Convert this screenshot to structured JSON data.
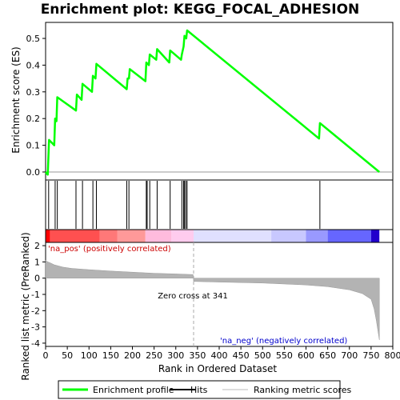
{
  "chart_data": {
    "type": "line",
    "title": "Enrichment plot: KEGG_FOCAL_ADHESION",
    "xlabel": "Rank in Ordered Dataset",
    "ylabel_top": "Enrichment score (ES)",
    "ylabel_bottom": "Ranked list metric (PreRanked)",
    "x_ticks": [
      0,
      50,
      100,
      150,
      200,
      250,
      300,
      350,
      400,
      450,
      500,
      550,
      600,
      650,
      700,
      750,
      800
    ],
    "x_range": [
      0,
      800
    ],
    "es_ticks": [
      0.0,
      0.1,
      0.2,
      0.3,
      0.4,
      0.5
    ],
    "es_range": [
      -0.03,
      0.56
    ],
    "metric_ticks": [
      2,
      1,
      0,
      -1,
      -2,
      -3,
      -4
    ],
    "metric_range": [
      -4.2,
      2.2
    ],
    "series_es": {
      "name": "Enrichment profile",
      "color": "#00ff00",
      "x": [
        0,
        5,
        8,
        20,
        22,
        25,
        27,
        70,
        72,
        83,
        85,
        107,
        109,
        115,
        117,
        187,
        189,
        192,
        194,
        230,
        232,
        238,
        240,
        255,
        257,
        285,
        287,
        312,
        314,
        318,
        320,
        324,
        326,
        630,
        632,
        769
      ],
      "y": [
        0.0,
        -0.01,
        0.12,
        0.1,
        0.2,
        0.19,
        0.28,
        0.23,
        0.29,
        0.27,
        0.33,
        0.3,
        0.36,
        0.35,
        0.405,
        0.31,
        0.35,
        0.35,
        0.385,
        0.34,
        0.41,
        0.4,
        0.44,
        0.42,
        0.46,
        0.41,
        0.455,
        0.42,
        0.44,
        0.47,
        0.51,
        0.5,
        0.53,
        0.125,
        0.183,
        0.0
      ]
    },
    "hits": [
      7,
      22,
      27,
      70,
      85,
      109,
      117,
      187,
      192,
      232,
      234,
      240,
      257,
      287,
      314,
      318,
      320,
      323,
      326,
      632
    ],
    "metric_curve": {
      "x": [
        0,
        5,
        10,
        20,
        40,
        60,
        100,
        150,
        200,
        250,
        300,
        340,
        341,
        400,
        500,
        600,
        650,
        700,
        730,
        750,
        757,
        762,
        766,
        769
      ],
      "y": [
        1.1,
        1.0,
        0.95,
        0.82,
        0.68,
        0.6,
        0.52,
        0.44,
        0.37,
        0.3,
        0.26,
        0.22,
        -0.2,
        -0.24,
        -0.3,
        -0.42,
        -0.52,
        -0.72,
        -0.95,
        -1.3,
        -1.9,
        -2.6,
        -3.3,
        -3.8
      ]
    },
    "zero_cross_x": 341,
    "zero_cross_label": "Zero cross at 341",
    "pos_label": "'na_pos' (positively correlated)",
    "neg_label": "'na_neg' (negatively correlated)",
    "pos_color": "#cc0000",
    "neg_color": "#0000cc",
    "ranking_gradient": [
      {
        "from": 0,
        "to": 10,
        "color": "#ff0000"
      },
      {
        "from": 10,
        "to": 125,
        "color": "#ff5050"
      },
      {
        "from": 125,
        "to": 165,
        "color": "#ff7878"
      },
      {
        "from": 165,
        "to": 230,
        "color": "#ff9999"
      },
      {
        "from": 230,
        "to": 290,
        "color": "#ffbbdd"
      },
      {
        "from": 290,
        "to": 341,
        "color": "#ffccee"
      },
      {
        "from": 341,
        "to": 520,
        "color": "#e0e0ff"
      },
      {
        "from": 520,
        "to": 600,
        "color": "#c8c8ff"
      },
      {
        "from": 600,
        "to": 650,
        "color": "#9999ff"
      },
      {
        "from": 650,
        "to": 750,
        "color": "#6666ff"
      },
      {
        "from": 750,
        "to": 769,
        "color": "#2200cc"
      }
    ]
  },
  "legend": {
    "items": [
      {
        "label": "Enrichment profile",
        "color": "#00ff00"
      },
      {
        "label": "Hits",
        "color": "#000000"
      },
      {
        "label": "Ranking metric scores",
        "color": "#bbbbbb"
      }
    ]
  }
}
